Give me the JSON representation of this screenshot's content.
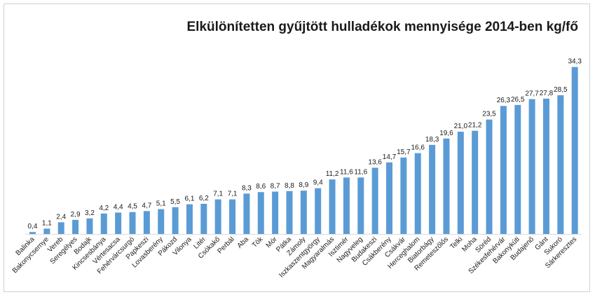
{
  "chart_data": {
    "type": "bar",
    "title": "Elkülönítetten gyűjtött hulladékok mennyisége 2014-ben kg/fő",
    "xlabel": "",
    "ylabel": "",
    "ylim": [
      0,
      36
    ],
    "grid": false,
    "legend": "none",
    "categories": [
      "Balinka",
      "Bakonycsernye",
      "Vereb",
      "Seregélyes",
      "Bodajk",
      "Kincsesbánya",
      "Vértesacsa",
      "Fehérvárcsurgó",
      "Papkeszi",
      "Lovasberény",
      "Pákozd",
      "Vilonya",
      "Litér",
      "Csókakő",
      "Perbál",
      "Aba",
      "Tök",
      "Mór",
      "Pátka",
      "Zámoly",
      "Iszkaszentgyörgy",
      "Magyaralmás",
      "Isztimér",
      "Nagyveleg",
      "Budakeszi",
      "Csákberény",
      "Csákvár",
      "Herceghalom",
      "Biatorbágy",
      "Remeteszőlős",
      "Telki",
      "Moha",
      "Söréd",
      "Székesfehérvár",
      "Bakonykúti",
      "Budajenő",
      "Gánt",
      "Sukoró",
      "Sárkeresztes"
    ],
    "values": [
      0.4,
      1.1,
      2.4,
      2.9,
      3.2,
      4.2,
      4.4,
      4.5,
      4.7,
      5.1,
      5.5,
      6.1,
      6.2,
      7.1,
      7.1,
      8.3,
      8.6,
      8.7,
      8.8,
      8.9,
      9.4,
      11.2,
      11.6,
      11.6,
      13.6,
      14.7,
      15.7,
      16.6,
      18.3,
      19.6,
      21.0,
      21.2,
      23.5,
      26.3,
      26.5,
      27.7,
      27.8,
      28.5,
      34.3
    ],
    "value_labels": [
      "0,4",
      "1,1",
      "2,4",
      "2,9",
      "3,2",
      "4,2",
      "4,4",
      "4,5",
      "4,7",
      "5,1",
      "5,5",
      "6,1",
      "6,2",
      "7,1",
      "7,1",
      "8,3",
      "8,6",
      "8,7",
      "8,8",
      "8,9",
      "9,4",
      "11,2",
      "11,6",
      "11,6",
      "13,6",
      "14,7",
      "15,7",
      "16,6",
      "18,3",
      "19,6",
      "21,0",
      "21,2",
      "23,5",
      "26,3",
      "26,5",
      "27,7",
      "27,8",
      "28,5",
      "34,3"
    ],
    "bar_color": "#5b9bd5"
  }
}
